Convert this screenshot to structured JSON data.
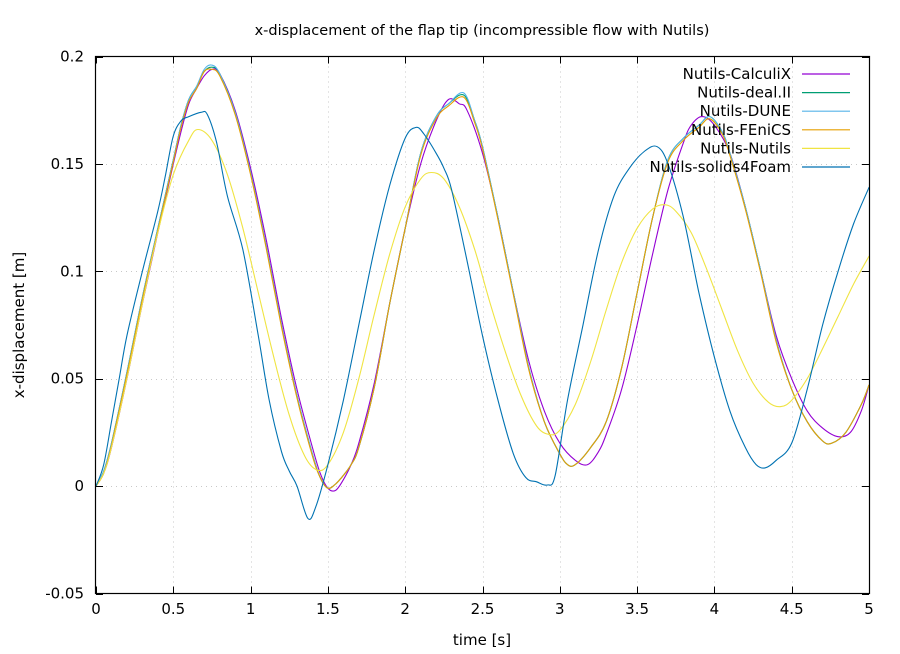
{
  "chart_data": {
    "type": "line",
    "title": "x-displacement of the flap tip (incompressible flow with Nutils)",
    "xlabel": "time [s]",
    "ylabel": "x-displacement [m]",
    "xlim": [
      0,
      5
    ],
    "ylim": [
      -0.05,
      0.2
    ],
    "xticks": [
      0,
      0.5,
      1,
      1.5,
      2,
      2.5,
      3,
      3.5,
      4,
      4.5,
      5
    ],
    "xtick_labels": [
      "0",
      "0.5",
      "1",
      "1.5",
      "2",
      "2.5",
      "3",
      "3.5",
      "4",
      "4.5",
      "5"
    ],
    "yticks": [
      -0.05,
      0,
      0.05,
      0.1,
      0.15,
      0.2
    ],
    "ytick_labels": [
      "-0.05",
      "0",
      "0.05",
      "0.1",
      "0.15",
      "0.2"
    ],
    "grid": true,
    "legend_position": "top-right",
    "series": [
      {
        "name": "Nutils-CalculiX",
        "color": "#9400d3",
        "x": [
          0,
          0.05,
          0.1,
          0.2,
          0.3,
          0.4,
          0.5,
          0.55,
          0.6,
          0.65,
          0.7,
          0.75,
          0.8,
          0.9,
          1.0,
          1.1,
          1.2,
          1.3,
          1.4,
          1.45,
          1.5,
          1.55,
          1.6,
          1.65,
          1.7,
          1.8,
          1.9,
          2.0,
          2.1,
          2.2,
          2.28,
          2.35,
          2.4,
          2.5,
          2.6,
          2.7,
          2.8,
          2.9,
          3.0,
          3.1,
          3.18,
          3.25,
          3.3,
          3.4,
          3.5,
          3.6,
          3.7,
          3.8,
          3.85,
          3.92,
          4.0,
          4.1,
          4.2,
          4.3,
          4.4,
          4.5,
          4.6,
          4.7,
          4.8,
          4.88,
          4.95,
          5.0
        ],
        "values": [
          0,
          0.006,
          0.018,
          0.05,
          0.085,
          0.118,
          0.15,
          0.165,
          0.178,
          0.185,
          0.191,
          0.194,
          0.192,
          0.175,
          0.148,
          0.115,
          0.078,
          0.045,
          0.018,
          0.006,
          -0.001,
          -0.002,
          0.003,
          0.01,
          0.02,
          0.048,
          0.085,
          0.12,
          0.15,
          0.17,
          0.18,
          0.178,
          0.175,
          0.155,
          0.125,
          0.09,
          0.058,
          0.035,
          0.02,
          0.012,
          0.01,
          0.016,
          0.024,
          0.045,
          0.075,
          0.108,
          0.138,
          0.16,
          0.168,
          0.172,
          0.168,
          0.155,
          0.13,
          0.1,
          0.07,
          0.05,
          0.035,
          0.027,
          0.023,
          0.025,
          0.035,
          0.047
        ]
      },
      {
        "name": "Nutils-deal.II",
        "color": "#009e73",
        "x": [
          0,
          0.05,
          0.1,
          0.2,
          0.3,
          0.4,
          0.5,
          0.55,
          0.6,
          0.65,
          0.7,
          0.75,
          0.8,
          0.9,
          1.0,
          1.1,
          1.2,
          1.3,
          1.4,
          1.45,
          1.5,
          1.55,
          1.6,
          1.65,
          1.7,
          1.8,
          1.9,
          2.0,
          2.1,
          2.2,
          2.28,
          2.38,
          2.45,
          2.5,
          2.6,
          2.7,
          2.8,
          2.9,
          3.0,
          3.05,
          3.1,
          3.2,
          3.3,
          3.4,
          3.5,
          3.6,
          3.7,
          3.8,
          3.9,
          3.97,
          4.05,
          4.1,
          4.2,
          4.3,
          4.4,
          4.5,
          4.6,
          4.7,
          4.76,
          4.85,
          4.95,
          5.0
        ],
        "values": [
          0,
          0.007,
          0.02,
          0.053,
          0.088,
          0.12,
          0.152,
          0.168,
          0.18,
          0.186,
          0.193,
          0.195,
          0.192,
          0.174,
          0.146,
          0.112,
          0.075,
          0.042,
          0.015,
          0.004,
          -0.001,
          0.001,
          0.005,
          0.01,
          0.018,
          0.046,
          0.085,
          0.12,
          0.155,
          0.172,
          0.178,
          0.182,
          0.17,
          0.158,
          0.125,
          0.09,
          0.055,
          0.03,
          0.015,
          0.01,
          0.01,
          0.018,
          0.03,
          0.055,
          0.09,
          0.125,
          0.152,
          0.162,
          0.168,
          0.172,
          0.165,
          0.155,
          0.13,
          0.1,
          0.068,
          0.045,
          0.03,
          0.021,
          0.02,
          0.025,
          0.038,
          0.047
        ]
      },
      {
        "name": "Nutils-DUNE",
        "color": "#56b4e9",
        "x": [
          0,
          0.05,
          0.1,
          0.2,
          0.3,
          0.4,
          0.5,
          0.55,
          0.6,
          0.65,
          0.7,
          0.75,
          0.8,
          0.9,
          1.0,
          1.1,
          1.2,
          1.3,
          1.4,
          1.45,
          1.5,
          1.55,
          1.6,
          1.65,
          1.7,
          1.8,
          1.9,
          2.0,
          2.1,
          2.2,
          2.28,
          2.38,
          2.45,
          2.5,
          2.6,
          2.7,
          2.8,
          2.9,
          3.0,
          3.05,
          3.1,
          3.2,
          3.3,
          3.4,
          3.5,
          3.6,
          3.7,
          3.8,
          3.9,
          3.97,
          4.05,
          4.1,
          4.2,
          4.3,
          4.4,
          4.5,
          4.6,
          4.7,
          4.76,
          4.85,
          4.95,
          5.0
        ],
        "values": [
          0,
          0.007,
          0.02,
          0.053,
          0.088,
          0.12,
          0.152,
          0.168,
          0.18,
          0.186,
          0.194,
          0.196,
          0.192,
          0.174,
          0.146,
          0.112,
          0.075,
          0.042,
          0.015,
          0.004,
          -0.001,
          0.001,
          0.005,
          0.01,
          0.018,
          0.046,
          0.085,
          0.12,
          0.155,
          0.172,
          0.178,
          0.183,
          0.17,
          0.158,
          0.125,
          0.09,
          0.055,
          0.03,
          0.015,
          0.01,
          0.01,
          0.018,
          0.03,
          0.055,
          0.09,
          0.125,
          0.152,
          0.162,
          0.168,
          0.172,
          0.165,
          0.155,
          0.13,
          0.1,
          0.068,
          0.045,
          0.03,
          0.021,
          0.02,
          0.025,
          0.038,
          0.047
        ]
      },
      {
        "name": "Nutils-FEniCS",
        "color": "#e69f00",
        "x": [
          0,
          0.05,
          0.1,
          0.2,
          0.3,
          0.4,
          0.5,
          0.55,
          0.6,
          0.65,
          0.7,
          0.75,
          0.8,
          0.9,
          1.0,
          1.1,
          1.2,
          1.3,
          1.4,
          1.45,
          1.5,
          1.55,
          1.6,
          1.65,
          1.7,
          1.8,
          1.9,
          2.0,
          2.1,
          2.2,
          2.28,
          2.38,
          2.45,
          2.5,
          2.6,
          2.7,
          2.8,
          2.9,
          3.0,
          3.05,
          3.1,
          3.2,
          3.3,
          3.4,
          3.5,
          3.6,
          3.7,
          3.8,
          3.9,
          3.97,
          4.05,
          4.1,
          4.2,
          4.3,
          4.4,
          4.5,
          4.6,
          4.7,
          4.76,
          4.85,
          4.95,
          5.0
        ],
        "values": [
          0,
          0.006,
          0.019,
          0.052,
          0.087,
          0.119,
          0.151,
          0.167,
          0.179,
          0.185,
          0.193,
          0.194,
          0.191,
          0.173,
          0.145,
          0.111,
          0.074,
          0.041,
          0.014,
          0.004,
          -0.001,
          0.001,
          0.005,
          0.01,
          0.018,
          0.046,
          0.085,
          0.12,
          0.154,
          0.171,
          0.177,
          0.181,
          0.169,
          0.157,
          0.124,
          0.089,
          0.054,
          0.03,
          0.015,
          0.01,
          0.01,
          0.018,
          0.03,
          0.055,
          0.09,
          0.125,
          0.151,
          0.161,
          0.167,
          0.171,
          0.164,
          0.154,
          0.129,
          0.099,
          0.067,
          0.045,
          0.03,
          0.021,
          0.02,
          0.025,
          0.038,
          0.047
        ]
      },
      {
        "name": "Nutils-Nutils",
        "color": "#f0e442",
        "x": [
          0,
          0.05,
          0.1,
          0.2,
          0.3,
          0.4,
          0.5,
          0.6,
          0.66,
          0.75,
          0.85,
          0.95,
          1.05,
          1.15,
          1.25,
          1.35,
          1.43,
          1.5,
          1.6,
          1.7,
          1.8,
          1.9,
          2.0,
          2.1,
          2.17,
          2.25,
          2.35,
          2.45,
          2.55,
          2.65,
          2.75,
          2.85,
          2.93,
          3.0,
          3.1,
          3.2,
          3.3,
          3.4,
          3.5,
          3.6,
          3.68,
          3.75,
          3.85,
          3.95,
          4.05,
          4.15,
          4.25,
          4.35,
          4.43,
          4.5,
          4.6,
          4.7,
          4.8,
          4.9,
          5.0
        ],
        "values": [
          0,
          0.006,
          0.018,
          0.05,
          0.085,
          0.118,
          0.145,
          0.161,
          0.166,
          0.161,
          0.145,
          0.12,
          0.09,
          0.06,
          0.033,
          0.014,
          0.0075,
          0.01,
          0.025,
          0.05,
          0.08,
          0.108,
          0.13,
          0.143,
          0.146,
          0.143,
          0.13,
          0.11,
          0.085,
          0.062,
          0.042,
          0.028,
          0.024,
          0.026,
          0.038,
          0.058,
          0.082,
          0.104,
          0.12,
          0.129,
          0.131,
          0.128,
          0.118,
          0.101,
          0.082,
          0.063,
          0.048,
          0.039,
          0.037,
          0.04,
          0.05,
          0.064,
          0.079,
          0.094,
          0.107
        ]
      },
      {
        "name": "Nutils-solids4Foam",
        "color": "#0072b2",
        "x": [
          0,
          0.05,
          0.1,
          0.15,
          0.2,
          0.3,
          0.4,
          0.45,
          0.5,
          0.55,
          0.6,
          0.68,
          0.72,
          0.78,
          0.85,
          0.95,
          1.05,
          1.12,
          1.2,
          1.25,
          1.3,
          1.37,
          1.42,
          1.5,
          1.6,
          1.7,
          1.8,
          1.9,
          2.0,
          2.07,
          2.12,
          2.2,
          2.25,
          2.3,
          2.4,
          2.5,
          2.6,
          2.7,
          2.78,
          2.85,
          2.92,
          2.97,
          3.05,
          3.15,
          3.25,
          3.35,
          3.45,
          3.55,
          3.63,
          3.7,
          3.8,
          3.9,
          4.0,
          4.1,
          4.2,
          4.27,
          4.33,
          4.4,
          4.5,
          4.6,
          4.7,
          4.8,
          4.9,
          5.0
        ],
        "values": [
          0,
          0.01,
          0.03,
          0.05,
          0.07,
          0.1,
          0.128,
          0.145,
          0.163,
          0.17,
          0.172,
          0.174,
          0.173,
          0.16,
          0.135,
          0.11,
          0.07,
          0.04,
          0.016,
          0.007,
          0.0,
          -0.015,
          -0.01,
          0.01,
          0.04,
          0.075,
          0.11,
          0.14,
          0.162,
          0.167,
          0.164,
          0.155,
          0.148,
          0.138,
          0.105,
          0.07,
          0.04,
          0.015,
          0.004,
          0.002,
          0.0005,
          0.005,
          0.04,
          0.075,
          0.11,
          0.135,
          0.148,
          0.156,
          0.158,
          0.15,
          0.125,
          0.09,
          0.06,
          0.035,
          0.018,
          0.01,
          0.0085,
          0.012,
          0.02,
          0.045,
          0.075,
          0.1,
          0.122,
          0.139
        ]
      }
    ]
  }
}
